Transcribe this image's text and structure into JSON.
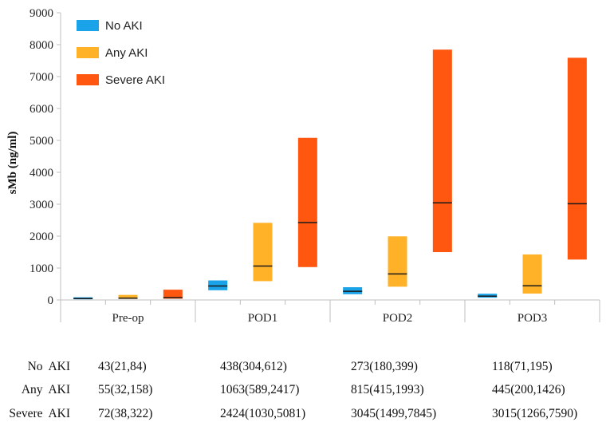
{
  "chart_data": {
    "type": "box",
    "ylabel": "sMb (ng/ml)",
    "ylim": [
      0,
      9000
    ],
    "yticks": [
      0,
      1000,
      2000,
      3000,
      4000,
      5000,
      6000,
      7000,
      8000,
      9000
    ],
    "categories": [
      "Pre-op",
      "POD1",
      "POD2",
      "POD3"
    ],
    "legend_position": "top-left",
    "series": [
      {
        "name": "No AKI",
        "color": "#1aa3e8",
        "median": [
          43,
          438,
          273,
          118
        ],
        "q1": [
          21,
          304,
          180,
          71
        ],
        "q3": [
          84,
          612,
          399,
          195
        ]
      },
      {
        "name": "Any AKI",
        "color": "#ffb128",
        "median": [
          55,
          1063,
          815,
          445
        ],
        "q1": [
          32,
          589,
          415,
          200
        ],
        "q3": [
          158,
          2417,
          1993,
          1426
        ]
      },
      {
        "name": "Severe AKI",
        "color": "#ff5610",
        "median": [
          72,
          2424,
          3045,
          3015
        ],
        "q1": [
          38,
          1030,
          1499,
          1266
        ],
        "q3": [
          322,
          5081,
          7845,
          7590
        ]
      }
    ]
  },
  "table": {
    "rows": [
      {
        "label": "No  AKI",
        "cells": [
          "43(21,84)",
          "438(304,612)",
          "273(180,399)",
          "118(71,195)"
        ]
      },
      {
        "label": "Any  AKI",
        "cells": [
          "55(32,158)",
          "1063(589,2417)",
          "815(415,1993)",
          "445(200,1426)"
        ]
      },
      {
        "label": "Severe  AKI",
        "cells": [
          "72(38,322)",
          "2424(1030,5081)",
          "3045(1499,7845)",
          "3015(1266,7590)"
        ]
      }
    ]
  }
}
